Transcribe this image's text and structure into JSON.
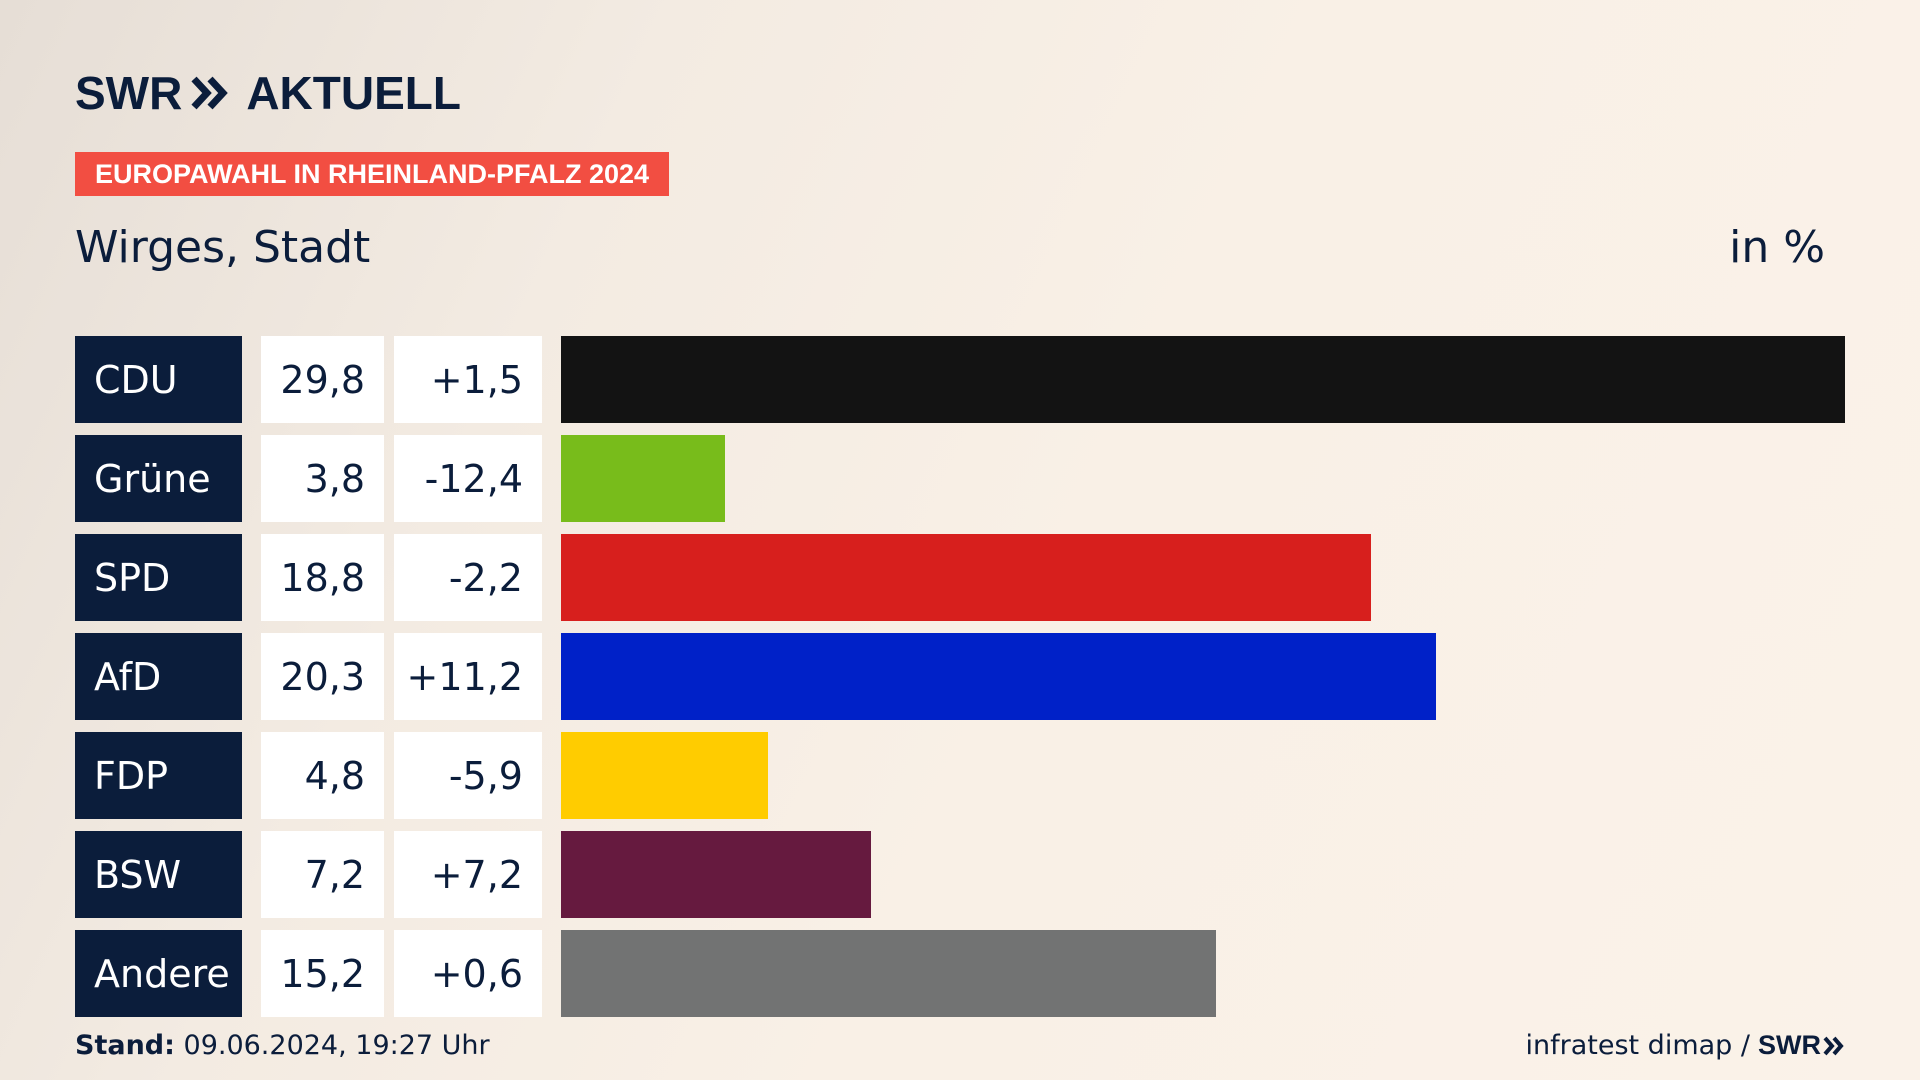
{
  "header": {
    "logo_text": "SWR",
    "logo_suffix": "AKTUELL",
    "topic": "EUROPAWAHL IN RHEINLAND-PFALZ 2024",
    "subtitle": "Wirges, Stadt",
    "unit": "in %"
  },
  "chart_data": {
    "type": "bar",
    "orientation": "horizontal",
    "categories": [
      "CDU",
      "Grüne",
      "SPD",
      "AfD",
      "FDP",
      "BSW",
      "Andere"
    ],
    "values": [
      29.8,
      3.8,
      18.8,
      20.3,
      4.8,
      7.2,
      15.2
    ],
    "values_display": [
      "29,8",
      "3,8",
      "18,8",
      "20,3",
      "4,8",
      "7,2",
      "15,2"
    ],
    "diff_display": [
      "+1,5",
      "-12,4",
      "-2,2",
      "+11,2",
      "-5,9",
      "+7,2",
      "+0,6"
    ],
    "colors": [
      "#131313",
      "#78bc1b",
      "#d71f1d",
      "#0021c8",
      "#ffcc00",
      "#661a3f",
      "#727373"
    ],
    "xlim": [
      0,
      29.8
    ]
  },
  "footer": {
    "stand_label": "Stand:",
    "stand_value": "09.06.2024, 19:27 Uhr",
    "source": "infratest dimap /",
    "source_brand": "SWR"
  }
}
